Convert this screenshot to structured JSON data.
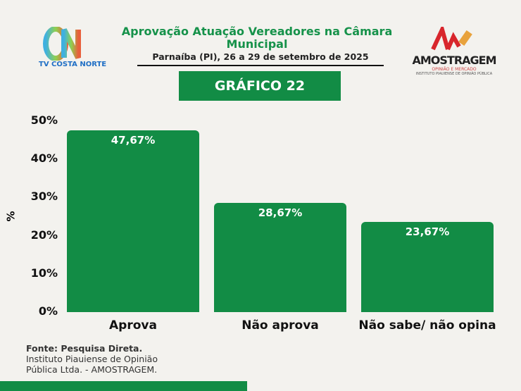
{
  "header": {
    "title": "Aprovação Atuação Vereadores na Câmara Municipal",
    "subtitle": "Parnaíba (PI), 26 a 29 de setembro de 2025",
    "badge": "GRÁFICO 22"
  },
  "logos": {
    "left": "TV COSTA NORTE",
    "left_mark": "CN",
    "right": "AMOSTRAGEM",
    "right_sub": "OPINIÃO E MERCADO",
    "right_sub2": "INSTITUTO PIAUIENSE DE OPINIÃO PÚBLICA"
  },
  "chart_data": {
    "type": "bar",
    "categories": [
      "Aprova",
      "Não aprova",
      "Não sabe/ não opina"
    ],
    "values": [
      47.67,
      28.67,
      23.67
    ],
    "value_labels": [
      "47,67%",
      "28,67%",
      "23,67%"
    ],
    "ylabel": "%",
    "ylim": [
      0,
      50
    ],
    "yticks": [
      "0%",
      "10%",
      "20%",
      "30%",
      "40%",
      "50%"
    ],
    "grid": false,
    "color": "#128c45"
  },
  "source": {
    "line1": "Fonte: Pesquisa Direta.",
    "line2": "Instituto Piauiense de Opinião",
    "line3": "Pública Ltda. - AMOSTRAGEM."
  }
}
